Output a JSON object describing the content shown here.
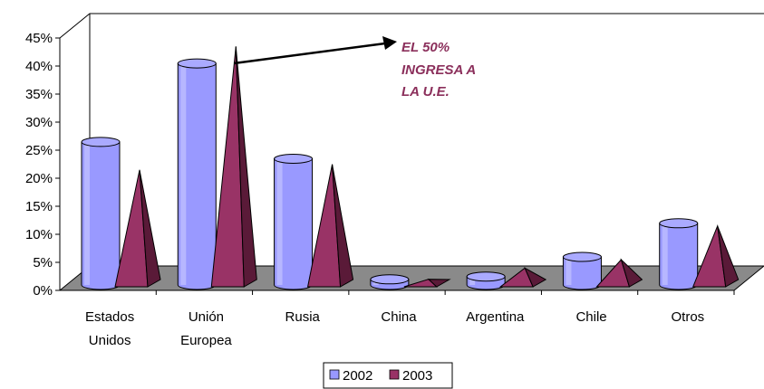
{
  "chart_data": {
    "type": "bar",
    "style": "3d-cylinder-and-pyramid",
    "categories": [
      [
        "Estados",
        "Unidos"
      ],
      [
        "Unión",
        "Europea"
      ],
      [
        "Rusia"
      ],
      [
        "China"
      ],
      [
        "Argentina"
      ],
      [
        "Chile"
      ],
      [
        "Otros"
      ]
    ],
    "series": [
      {
        "name": "2002",
        "shape": "cylinder",
        "color": "#9999ff",
        "values": [
          25.5,
          39.5,
          22.5,
          1,
          1.5,
          5,
          11
        ]
      },
      {
        "name": "2003",
        "shape": "pyramid",
        "color": "#993366",
        "values": [
          21,
          43,
          22,
          1.5,
          3.5,
          5,
          11
        ]
      }
    ],
    "y_ticks": [
      "0%",
      "5%",
      "10%",
      "15%",
      "20%",
      "25%",
      "30%",
      "35%",
      "40%",
      "45%"
    ],
    "ylim": [
      0,
      45
    ],
    "annotation": {
      "lines": [
        "EL 50%",
        "INGRESA A",
        "LA U.E."
      ],
      "color": "#993366"
    },
    "legend": {
      "position": "bottom",
      "labels": [
        "2002",
        "2003"
      ]
    },
    "grid": false
  }
}
